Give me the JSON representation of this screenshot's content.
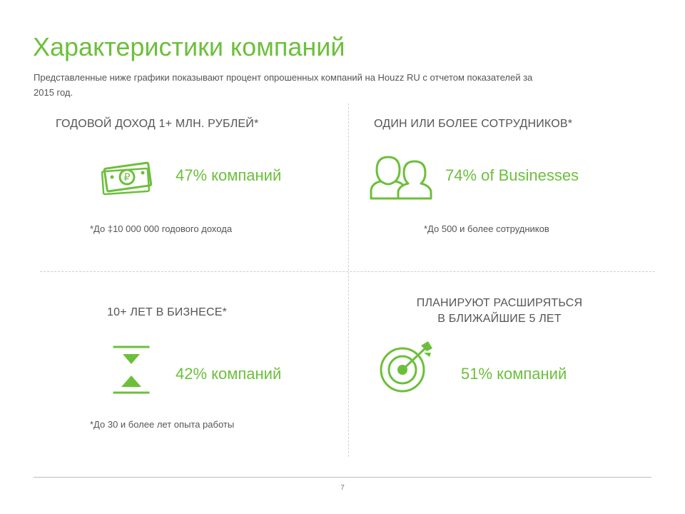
{
  "slide": {
    "title": "Характеристики компаний",
    "subtitle": "Представленные ниже графики показывают процент опрошенных компаний на Houzz RU с отчетом показателей за 2015 год.",
    "page_number": "7",
    "accent_color": "#6cbf3b"
  },
  "quadrants": [
    {
      "heading": "ГОДОВОЙ ДОХОД 1+ МЛН. РУБЛЕЙ*",
      "stat": "47% компаний",
      "note": "*До ‡10 000 000 годового дохода",
      "icon": "money-icon"
    },
    {
      "heading": "ОДИН ИЛИ БОЛЕЕ СОТРУДНИКОВ*",
      "stat": "74% of Businesses",
      "note": "*До 500 и более сотрудников",
      "icon": "people-icon"
    },
    {
      "heading": "10+ ЛЕТ В БИЗНЕСЕ*",
      "stat": "42% компаний",
      "note": "*До 30 и более лет опыта работы",
      "icon": "hourglass-icon"
    },
    {
      "heading_line1": "ПЛАНИРУЮТ РАСШИРЯТЬСЯ",
      "heading_line2": "В БЛИЖАЙШИЕ 5 ЛЕТ",
      "stat": "51% компаний",
      "icon": "target-icon"
    }
  ]
}
